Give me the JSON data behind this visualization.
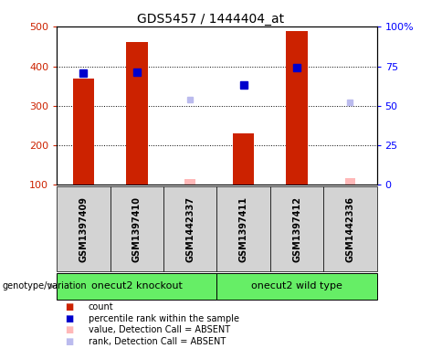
{
  "title": "GDS5457 / 1444404_at",
  "samples": [
    "GSM1397409",
    "GSM1397410",
    "GSM1442337",
    "GSM1397411",
    "GSM1397412",
    "GSM1442336"
  ],
  "count_values": [
    370,
    462,
    null,
    230,
    490,
    null
  ],
  "rank_values": [
    383,
    385,
    null,
    352,
    397,
    null
  ],
  "absent_count_values": [
    null,
    null,
    115,
    null,
    null,
    118
  ],
  "absent_rank_values": [
    null,
    null,
    315,
    null,
    null,
    308
  ],
  "ylim_left": [
    100,
    500
  ],
  "ylim_right": [
    0,
    100
  ],
  "yticks_left": [
    100,
    200,
    300,
    400,
    500
  ],
  "yticks_right": [
    0,
    25,
    50,
    75,
    100
  ],
  "ytick_labels_left": [
    "100",
    "200",
    "300",
    "400",
    "500"
  ],
  "ytick_labels_right": [
    "0",
    "25",
    "50",
    "75",
    "100%"
  ],
  "bar_color": "#cc2200",
  "rank_color": "#0000cc",
  "absent_bar_color": "#ffb8b8",
  "absent_rank_color": "#bbbbee",
  "xlabel_area_color": "#d3d3d3",
  "group1_label": "onecut2 knockout",
  "group2_label": "onecut2 wild type",
  "group_color": "#66ee66",
  "legend_items": [
    {
      "label": "count",
      "color": "#cc2200"
    },
    {
      "label": "percentile rank within the sample",
      "color": "#0000cc"
    },
    {
      "label": "value, Detection Call = ABSENT",
      "color": "#ffb8b8"
    },
    {
      "label": "rank, Detection Call = ABSENT",
      "color": "#bbbbee"
    }
  ],
  "bar_width": 0.4,
  "rank_marker_size": 6,
  "absent_marker_size": 5,
  "title_fontsize": 10,
  "tick_fontsize": 8,
  "label_fontsize": 7,
  "sample_fontsize": 7,
  "group_fontsize": 8,
  "legend_fontsize": 7
}
